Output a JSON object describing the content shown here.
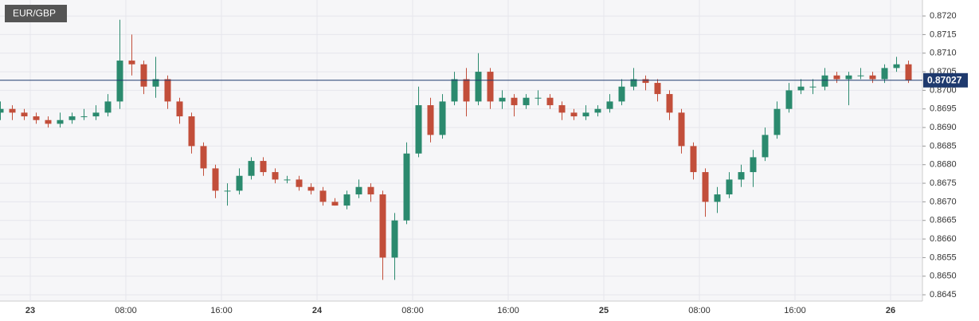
{
  "chart_data": {
    "type": "candlestick",
    "title": "EUR/GBP",
    "categories": [
      null,
      null,
      null,
      "23",
      null,
      null,
      null,
      null,
      null,
      null,
      null,
      "08:00",
      null,
      null,
      null,
      null,
      null,
      null,
      null,
      "16:00",
      null,
      null,
      null,
      null,
      null,
      null,
      null,
      "24",
      null,
      null,
      null,
      null,
      null,
      null,
      null,
      "08:00",
      null,
      null,
      null,
      null,
      null,
      null,
      null,
      "16:00",
      null,
      null,
      null,
      null,
      null,
      null,
      null,
      "25",
      null,
      null,
      null,
      null,
      null,
      null,
      null,
      "08:00",
      null,
      null,
      null,
      null,
      null,
      null,
      null,
      "16:00",
      null,
      null,
      null,
      null,
      null,
      null,
      null,
      "26",
      null
    ],
    "open": [
      0.8694,
      0.8695,
      0.8694,
      0.8693,
      0.8692,
      0.8691,
      0.8692,
      0.8693,
      0.8693,
      0.8694,
      0.8697,
      0.8708,
      0.8707,
      0.8701,
      0.8703,
      0.8697,
      0.8693,
      0.8685,
      0.8679,
      0.8673,
      0.8673,
      0.8677,
      0.8681,
      0.8678,
      0.8676,
      0.8676,
      0.8674,
      0.8673,
      0.867,
      0.8669,
      0.8672,
      0.8674,
      0.8672,
      0.8655,
      0.8665,
      0.8683,
      0.8696,
      0.8688,
      0.8697,
      0.8703,
      0.8697,
      0.8705,
      0.8697,
      0.8698,
      0.8696,
      0.8698,
      0.8698,
      0.8696,
      0.8694,
      0.8693,
      0.8694,
      0.8695,
      0.8697,
      0.8701,
      0.8703,
      0.8702,
      0.8699,
      0.8694,
      0.8685,
      0.8678,
      0.867,
      0.8672,
      0.8676,
      0.8678,
      0.8682,
      0.8688,
      0.8695,
      0.87,
      0.8701,
      0.8701,
      0.8704,
      0.8703,
      0.8704,
      0.8704,
      0.8703,
      0.8706,
      0.8707
    ],
    "high": [
      0.8697,
      0.8696,
      0.8695,
      0.8694,
      0.8693,
      0.8694,
      0.8694,
      0.8695,
      0.8696,
      0.8699,
      0.8719,
      0.8715,
      0.8708,
      0.8709,
      0.8704,
      0.8698,
      0.8694,
      0.8686,
      0.868,
      0.8675,
      0.8679,
      0.8682,
      0.8682,
      0.8679,
      0.8677,
      0.8677,
      0.8675,
      0.8674,
      0.8671,
      0.8673,
      0.8676,
      0.8675,
      0.8673,
      0.8667,
      0.8686,
      0.8701,
      0.8698,
      0.8699,
      0.8705,
      0.8706,
      0.871,
      0.8706,
      0.87,
      0.8699,
      0.8699,
      0.87,
      0.8699,
      0.8697,
      0.8695,
      0.8696,
      0.8696,
      0.8699,
      0.8703,
      0.8706,
      0.8704,
      0.8703,
      0.87,
      0.8695,
      0.8686,
      0.8679,
      0.8674,
      0.8678,
      0.868,
      0.8684,
      0.869,
      0.8697,
      0.8702,
      0.8703,
      0.8703,
      0.8706,
      0.8705,
      0.8705,
      0.8706,
      0.8705,
      0.8707,
      0.8709,
      0.8708
    ],
    "low": [
      0.8692,
      0.8692,
      0.8692,
      0.8691,
      0.869,
      0.869,
      0.8691,
      0.8692,
      0.8692,
      0.8693,
      0.8695,
      0.8704,
      0.8699,
      0.8698,
      0.8695,
      0.8691,
      0.8683,
      0.8677,
      0.8671,
      0.8669,
      0.8672,
      0.8676,
      0.8677,
      0.8675,
      0.8675,
      0.8673,
      0.8672,
      0.8669,
      0.8669,
      0.8668,
      0.8671,
      0.867,
      0.8649,
      0.8649,
      0.8664,
      0.8682,
      0.8686,
      0.8687,
      0.8696,
      0.8693,
      0.8696,
      0.8695,
      0.8695,
      0.8693,
      0.8695,
      0.8696,
      0.8695,
      0.8692,
      0.8692,
      0.8692,
      0.8693,
      0.8694,
      0.8696,
      0.87,
      0.87,
      0.8697,
      0.8692,
      0.8683,
      0.8676,
      0.8666,
      0.8667,
      0.8671,
      0.8674,
      0.8674,
      0.8681,
      0.8687,
      0.8694,
      0.8699,
      0.8699,
      0.87,
      0.8702,
      0.8696,
      0.8703,
      0.8702,
      0.8702,
      0.8705,
      0.8702
    ],
    "close": [
      0.8695,
      0.8694,
      0.8693,
      0.8692,
      0.8691,
      0.8692,
      0.8693,
      0.8693,
      0.8694,
      0.8697,
      0.8708,
      0.8707,
      0.8701,
      0.8703,
      0.8697,
      0.8693,
      0.8685,
      0.8679,
      0.8673,
      0.8673,
      0.8677,
      0.8681,
      0.8678,
      0.8676,
      0.8676,
      0.8674,
      0.8673,
      0.867,
      0.8669,
      0.8672,
      0.8674,
      0.8672,
      0.8655,
      0.8665,
      0.8683,
      0.8696,
      0.8688,
      0.8697,
      0.8703,
      0.8697,
      0.8705,
      0.8697,
      0.8698,
      0.8696,
      0.8698,
      0.8698,
      0.8696,
      0.8694,
      0.8693,
      0.8694,
      0.8695,
      0.8697,
      0.8701,
      0.8703,
      0.8702,
      0.8699,
      0.8694,
      0.8685,
      0.8678,
      0.867,
      0.8672,
      0.8676,
      0.8678,
      0.8682,
      0.8688,
      0.8695,
      0.87,
      0.8701,
      0.8701,
      0.8704,
      0.8703,
      0.8704,
      0.8704,
      0.8703,
      0.8706,
      0.8707,
      0.87027
    ],
    "up_color": "#2b8a6e",
    "down_color": "#c24e3a",
    "last_price": 0.87027,
    "last_price_color": "#1f3a6e",
    "ylim": [
      0.86433,
      0.87243
    ],
    "yticks": [
      0.8645,
      {
        "value": 0.865,
        "label": "0.8650"
      },
      0.8655,
      {
        "value": 0.866,
        "label": "0.8660"
      },
      0.8665,
      {
        "value": 0.867,
        "label": "0.8670"
      },
      0.8675,
      {
        "value": 0.868,
        "label": "0.8680"
      },
      0.8685,
      {
        "value": 0.869,
        "label": "0.8690"
      },
      0.8695,
      {
        "value": 0.87,
        "label": "0.8700"
      },
      0.8705,
      {
        "value": 0.871,
        "label": "0.8710"
      },
      0.8715,
      {
        "value": 0.872,
        "label": "0.8720"
      }
    ],
    "grid": true
  }
}
